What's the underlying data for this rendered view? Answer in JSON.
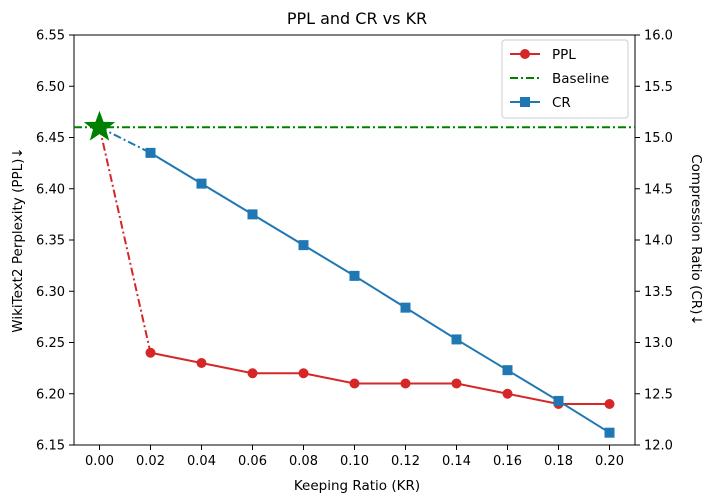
{
  "chart_data": {
    "type": "line",
    "title": "PPL and CR vs KR",
    "xlabel": "Keeping Ratio (KR)",
    "ylabel_left": "WikiText2 Perplexity (PPL)↓",
    "ylabel_right": "Compression Ratio (CR)↓",
    "x_ticks": [
      "0.00",
      "0.02",
      "0.04",
      "0.06",
      "0.08",
      "0.10",
      "0.12",
      "0.14",
      "0.16",
      "0.18",
      "0.20"
    ],
    "y_left_ticks": [
      "6.15",
      "6.20",
      "6.25",
      "6.30",
      "6.35",
      "6.40",
      "6.45",
      "6.50",
      "6.55"
    ],
    "y_right_ticks": [
      "12.0",
      "12.5",
      "13.0",
      "13.5",
      "14.0",
      "14.5",
      "15.0",
      "15.5",
      "16.0"
    ],
    "xlim": [
      -0.01,
      0.21
    ],
    "ylim_left": [
      6.15,
      6.55
    ],
    "ylim_right": [
      12.0,
      16.0
    ],
    "legend_position": "top-right",
    "series": [
      {
        "name": "PPL",
        "axis": "left",
        "color": "#d62728",
        "marker": "circle",
        "x": [
          0.0,
          0.02,
          0.04,
          0.06,
          0.08,
          0.1,
          0.12,
          0.14,
          0.16,
          0.18,
          0.2
        ],
        "values": [
          6.46,
          6.24,
          6.23,
          6.22,
          6.22,
          6.21,
          6.21,
          6.21,
          6.2,
          6.19,
          6.19
        ]
      },
      {
        "name": "Baseline",
        "axis": "left",
        "color": "#008000",
        "style": "dash-dot",
        "value": 6.46
      },
      {
        "name": "CR",
        "axis": "right",
        "color": "#1f77b4",
        "marker": "square",
        "x": [
          0.0,
          0.02,
          0.04,
          0.06,
          0.08,
          0.1,
          0.12,
          0.14,
          0.16,
          0.18,
          0.2
        ],
        "values": [
          15.1,
          14.85,
          14.55,
          14.25,
          13.95,
          13.65,
          13.34,
          13.03,
          12.73,
          12.43,
          12.12
        ]
      }
    ],
    "annotations": [
      {
        "name": "baseline-star",
        "x": 0.0,
        "y": 6.46,
        "color": "#008000",
        "marker": "star"
      }
    ]
  }
}
